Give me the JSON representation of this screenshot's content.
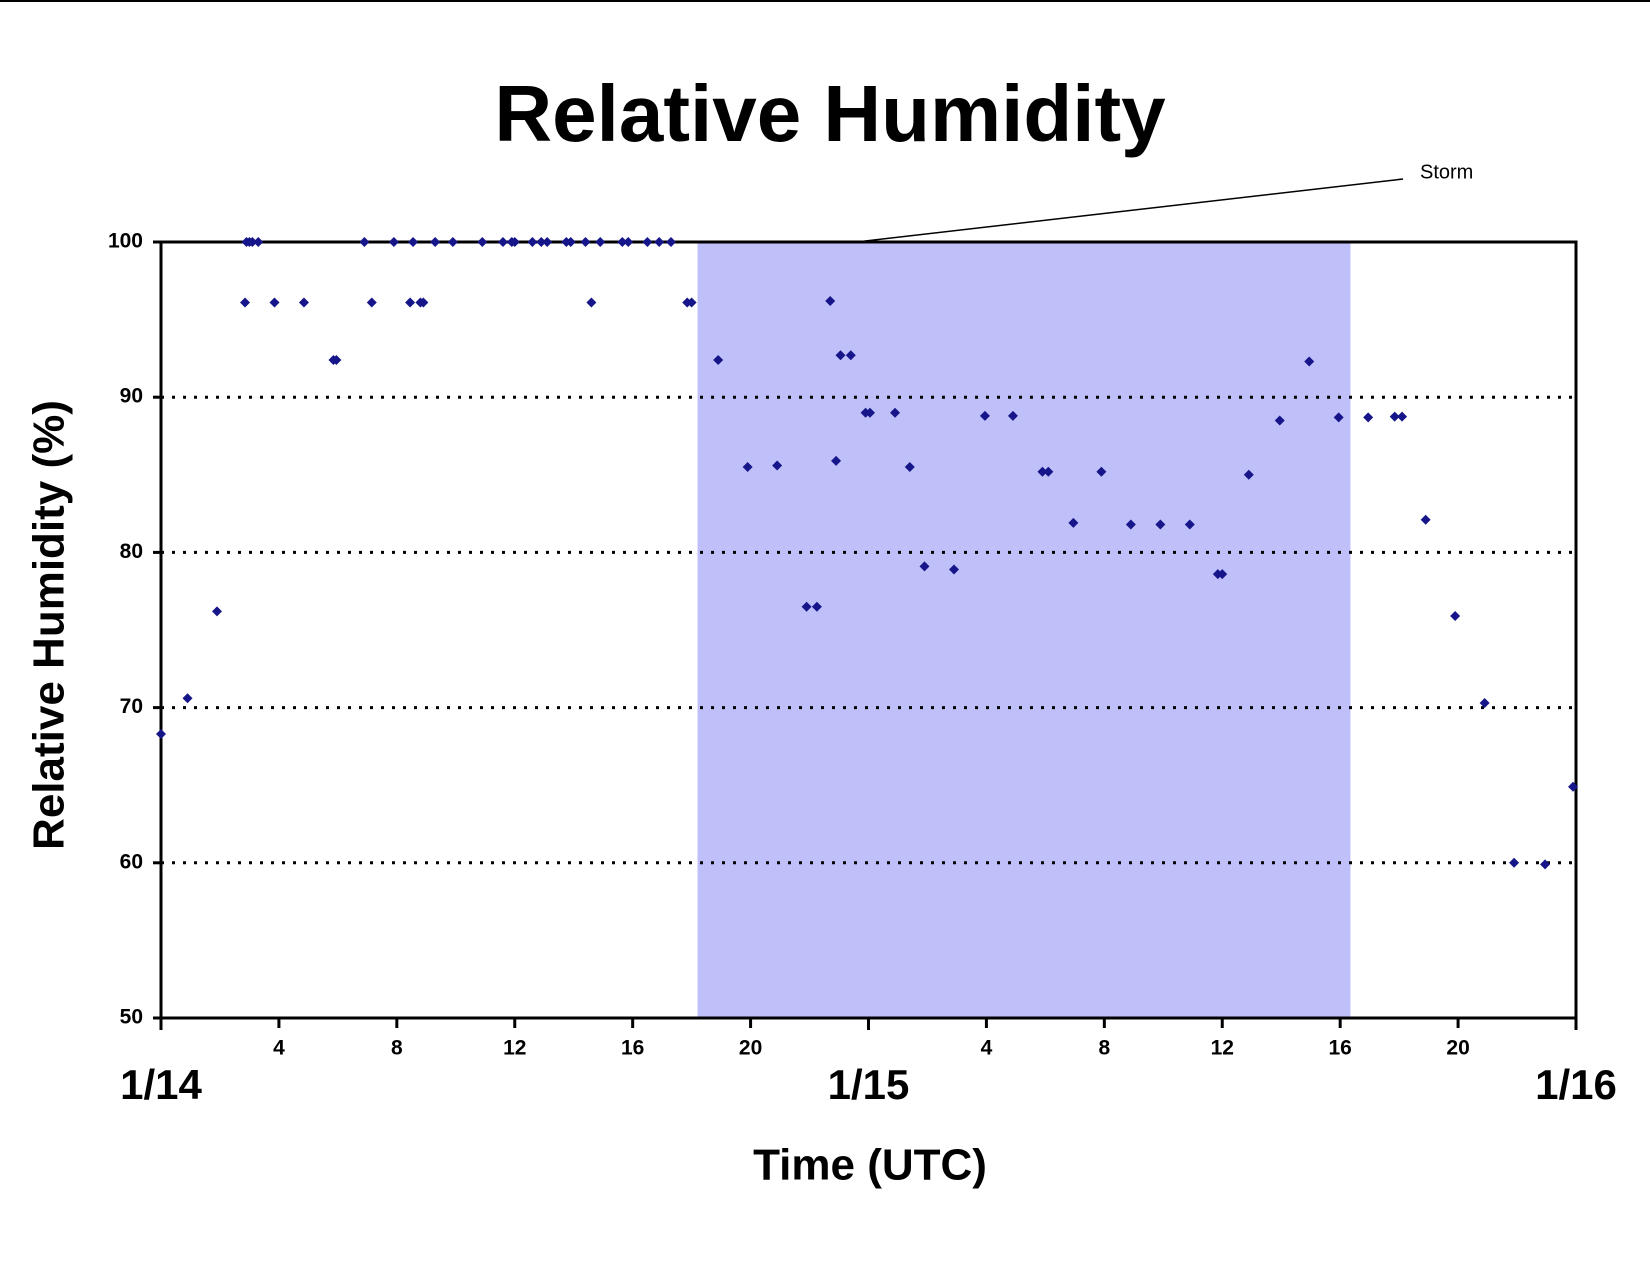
{
  "chart_data": {
    "type": "scatter",
    "title": "Relative Humidity",
    "x_label": "Time (UTC)",
    "y_label": "Relative Humidity (%)",
    "xlim": [
      0,
      48
    ],
    "ylim": [
      50,
      100
    ],
    "xticks": [
      4,
      8,
      12,
      16,
      20,
      {
        "value": 28,
        "label": "4"
      },
      {
        "value": 32,
        "label": "8"
      },
      {
        "value": 36,
        "label": "12"
      },
      {
        "value": 40,
        "label": "16"
      },
      {
        "value": 44,
        "label": "20"
      }
    ],
    "date_labels": [
      {
        "value": 0,
        "label": "1/14"
      },
      {
        "value": 24,
        "label": "1/15"
      },
      {
        "value": 48,
        "label": "1/16"
      }
    ],
    "yticks": [
      50,
      60,
      70,
      80,
      90,
      100
    ],
    "grid": true,
    "shaded_region": {
      "x": [
        18.2,
        40.35
      ],
      "color": "#bfbffa"
    },
    "annotation": {
      "text": "Storm",
      "x": 23.6,
      "y": 100
    },
    "series": [
      {
        "color": "#16168a",
        "x": [
          0,
          0.9,
          1.9,
          2.85,
          2.9,
          3.0,
          3.1,
          3.3,
          3.85,
          4.85,
          5.85,
          5.95,
          6.9,
          7.15,
          7.9,
          8.45,
          8.55,
          8.8,
          8.9,
          9.3,
          9.9,
          10.9,
          11.6,
          11.9,
          12.0,
          12.6,
          12.9,
          13.1,
          13.75,
          13.9,
          14.4,
          14.6,
          14.9,
          15.65,
          15.85,
          16.5,
          16.9,
          17.3,
          17.85,
          18.0,
          18.9,
          19.9,
          20.9,
          21.9,
          22.25,
          22.7,
          22.9,
          23.05,
          23.4,
          23.9,
          24.05,
          24.9,
          25.4,
          25.9,
          26.9,
          27.95,
          28.9,
          29.9,
          30.1,
          30.95,
          31.9,
          32.9,
          33.9,
          34.9,
          35.85,
          36.0,
          36.9,
          37.95,
          38.95,
          39.95,
          40.95,
          41.85,
          42.1,
          42.9,
          43.9,
          44.9,
          45.9,
          46.95,
          47.9
        ],
        "values": [
          68.3,
          70.6,
          76.2,
          96.1,
          100,
          100,
          100,
          100,
          96.1,
          96.1,
          92.4,
          92.4,
          100,
          96.1,
          100,
          96.1,
          100,
          96.1,
          96.1,
          100,
          100,
          100,
          100,
          100,
          100,
          100,
          100,
          100,
          100,
          100,
          100,
          96.1,
          100,
          100,
          100,
          100,
          100,
          100,
          96.1,
          96.1,
          92.4,
          85.5,
          85.6,
          76.5,
          76.5,
          96.2,
          85.9,
          92.7,
          92.7,
          89.0,
          89.0,
          89.0,
          85.5,
          79.1,
          78.9,
          88.8,
          88.8,
          85.2,
          85.2,
          81.9,
          85.2,
          81.8,
          81.8,
          81.8,
          78.6,
          78.6,
          85.0,
          88.5,
          92.3,
          88.7,
          88.7,
          88.75,
          88.75,
          82.1,
          75.9,
          70.3,
          60.0,
          59.9,
          64.9
        ]
      }
    ]
  }
}
